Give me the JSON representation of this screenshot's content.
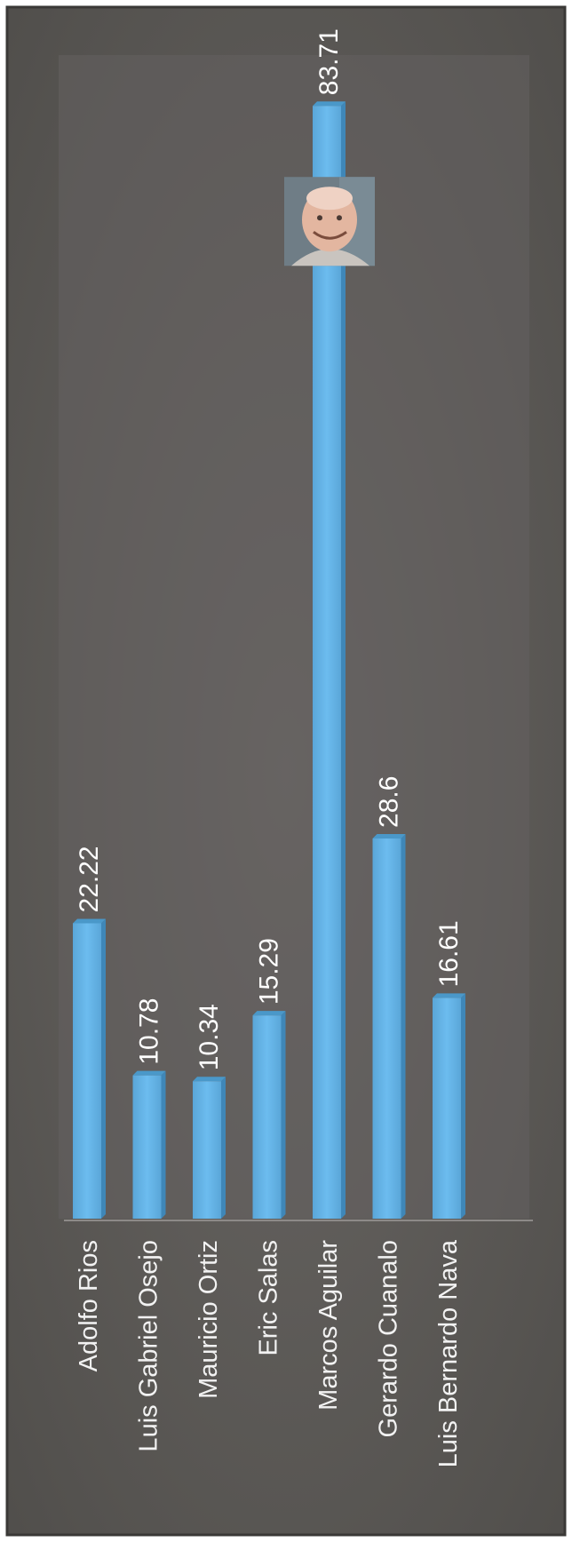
{
  "chart_data": {
    "type": "bar",
    "orientation": "vertical, page rotated 90 degrees",
    "categories": [
      "Adolfo Rios",
      "Luis Gabriel Osejo",
      "Mauricio Ortiz",
      "Eric Salas",
      "Marcos Aguilar",
      "Gerardo Cuanalo",
      "Luis Bernardo Nava"
    ],
    "values": [
      22.22,
      10.78,
      10.34,
      15.29,
      83.71,
      28.6,
      16.61
    ],
    "value_labels": [
      "22.22",
      "10.78",
      "10.34",
      "15.29",
      "83.71",
      "28.6",
      "16.61"
    ],
    "ylim": [
      0,
      87
    ],
    "grid": false,
    "legend": "none",
    "bar_color": "#63b3e6",
    "background_color": "#5f5c59",
    "avatar_on_bar": "Marcos Aguilar"
  }
}
